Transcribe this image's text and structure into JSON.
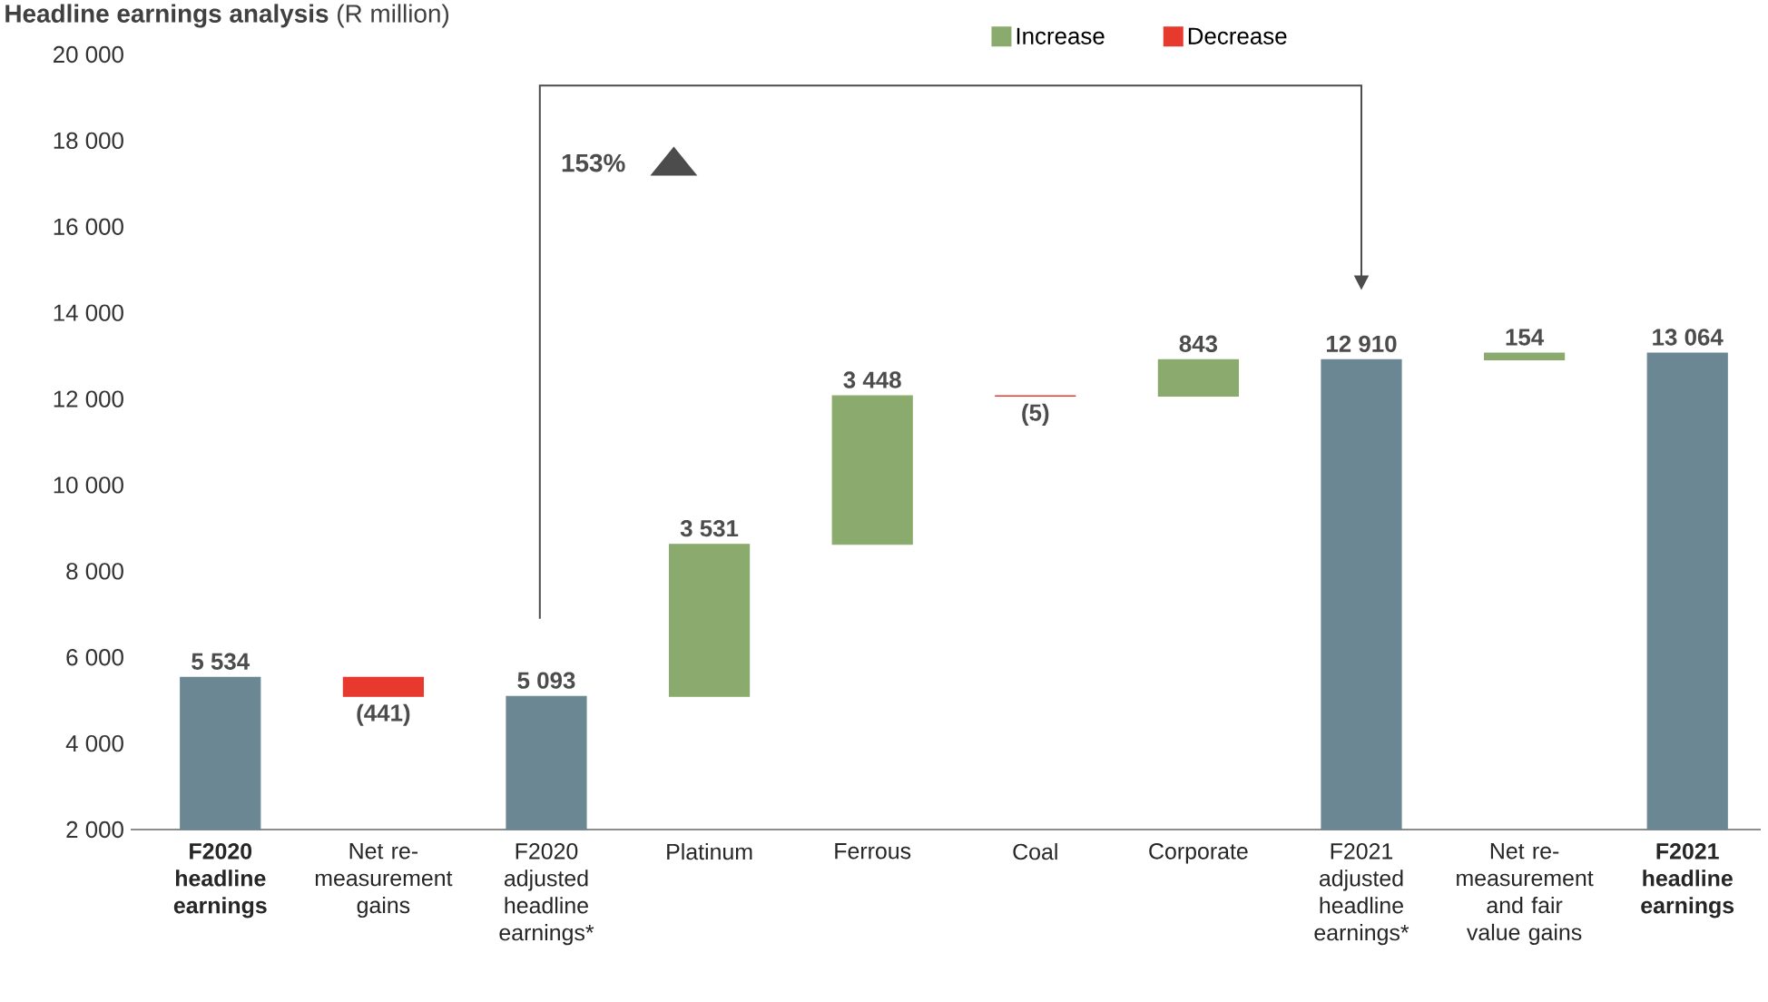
{
  "chart_data": {
    "type": "bar",
    "title": "**Headline earnings analysis** (R million)",
    "categories": [
      "F2020 headline earnings",
      "Net re-measurement gains",
      "F2020 adjusted headline earnings*",
      "Platinum",
      "Ferrous",
      "Coal",
      "Corporate",
      "F2021 adjusted headline earnings*",
      "Net re-measurement and fair value gains",
      "F2021 headline earnings"
    ],
    "series": [
      {
        "color": "#6b8793",
        "values": [
          5534,
          null,
          5093,
          null,
          null,
          null,
          null,
          12910,
          null,
          13064
        ],
        "value_labels": [
          "5 534",
          null,
          "5 093",
          null,
          null,
          null,
          null,
          "12 910",
          null,
          "13 064"
        ]
      },
      {
        "name": "Increase",
        "color": "#8aab6d",
        "values": [
          null,
          null,
          null,
          3531,
          3448,
          null,
          843,
          null,
          154,
          null
        ],
        "base": [
          null,
          null,
          null,
          5093,
          8624,
          null,
          12067,
          null,
          12910,
          null
        ],
        "value_labels": [
          null,
          null,
          null,
          "3 531",
          "3 448",
          null,
          "843",
          null,
          "154",
          null
        ]
      },
      {
        "name": "Decrease",
        "color": "#e8392f",
        "values": [
          null,
          -441,
          null,
          null,
          null,
          -5,
          null,
          null,
          null,
          null
        ],
        "base": [
          null,
          5534,
          null,
          null,
          null,
          12072,
          null,
          null,
          null,
          null
        ],
        "value_labels": [
          null,
          "(441)",
          null,
          null,
          null,
          "(5)",
          null,
          null,
          null,
          null
        ]
      }
    ],
    "ylim": [
      2000,
      20000
    ],
    "yticks": [
      {
        "value": 2000,
        "label": "2 000"
      },
      {
        "value": 4000,
        "label": "4 000"
      },
      {
        "value": 6000,
        "label": "6 000"
      },
      {
        "value": 8000,
        "label": "8 000"
      },
      {
        "value": 10000,
        "label": "10 000"
      },
      {
        "value": 12000,
        "label": "12 000"
      },
      {
        "value": 14000,
        "label": "14 000"
      },
      {
        "value": 16000,
        "label": "16 000"
      },
      {
        "value": 18000,
        "label": "18 000"
      },
      {
        "value": 20000,
        "label": "20 000"
      }
    ],
    "annotations": [
      "153%"
    ],
    "legend": "top",
    "grid": false
  }
}
